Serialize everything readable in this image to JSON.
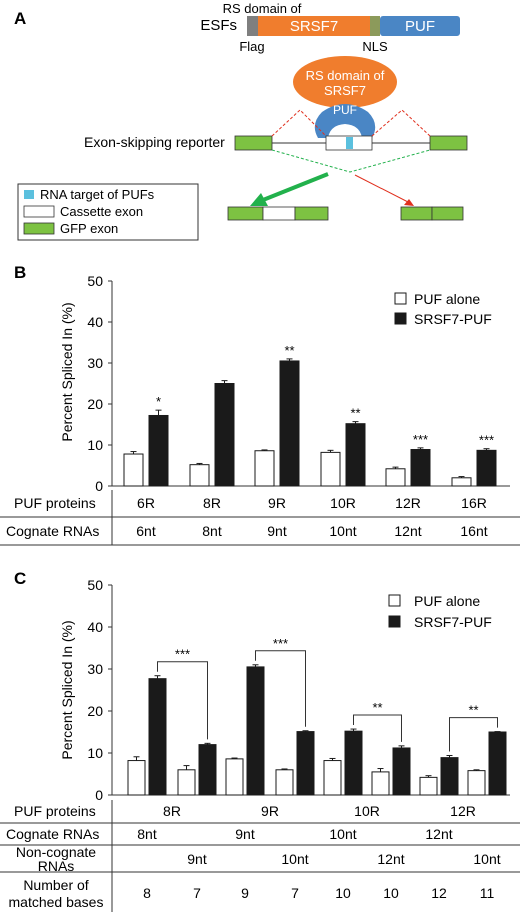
{
  "panelA": {
    "label": "A",
    "esfs_label": "ESFs",
    "rs_domain_label": "RS domain of",
    "srsf7_label": "SRSF7",
    "puf_label": "PUF",
    "flag_label": "Flag",
    "nls_label": "NLS",
    "ellipse_line1": "RS domain of",
    "ellipse_line2": "SRSF7",
    "bound_puf_label": "PUF",
    "reporter_label": "Exon-skipping reporter",
    "legend": [
      {
        "label": "RNA target of PUFs",
        "color": "#5bc0de"
      },
      {
        "label": "Cassette exon",
        "color": "#ffffff"
      },
      {
        "label": "GFP exon",
        "color": "#7dc242"
      }
    ],
    "colors": {
      "srsf7": "#f07d2d",
      "puf": "#4a86c5",
      "flag": "#7f7f7f",
      "nls": "#8c9a5b",
      "gfp": "#7dc242",
      "target": "#5bc0de",
      "arrow": "#22b14c",
      "red": "#e0301e"
    }
  },
  "panelB": {
    "label": "B",
    "ylabel": "Percent Spliced In (%)",
    "legend": [
      "PUF alone",
      "SRSF7-PUF"
    ],
    "row1_label": "PUF proteins",
    "row2_label": "Cognate RNAs",
    "proteins": [
      "6R",
      "8R",
      "9R",
      "10R",
      "12R",
      "16R"
    ],
    "rnas": [
      "6nt",
      "8nt",
      "9nt",
      "10nt",
      "12nt",
      "16nt"
    ],
    "yticks": [
      "0",
      "10",
      "20",
      "30",
      "40",
      "50"
    ]
  },
  "panelC": {
    "label": "C",
    "ylabel": "Percent Spliced In (%)",
    "legend": [
      "PUF alone",
      "SRSF7-PUF"
    ],
    "row1_label": "PUF proteins",
    "row2_label": "Cognate RNAs",
    "row3_label_1": "Non-cognate",
    "row3_label_2": "RNAs",
    "row4_label_1": "Number of",
    "row4_label_2": "matched bases",
    "proteins": [
      "8R",
      "9R",
      "10R",
      "12R"
    ],
    "cognate": [
      "8nt",
      "9nt",
      "10nt",
      "12nt"
    ],
    "noncognate": [
      "9nt",
      "10nt",
      "12nt",
      "10nt"
    ],
    "matched": [
      "8",
      "7",
      "9",
      "7",
      "10",
      "10",
      "12",
      "11"
    ],
    "brackets": [
      "***",
      "***",
      "**",
      "**"
    ],
    "yticks": [
      "0",
      "10",
      "20",
      "30",
      "40",
      "50"
    ]
  },
  "chart_data": [
    {
      "type": "bar",
      "ylabel": "Percent Spliced In (%)",
      "ylim": [
        0,
        50
      ],
      "categories": [
        "6R",
        "8R",
        "9R",
        "10R",
        "12R",
        "16R"
      ],
      "series": [
        {
          "name": "PUF alone",
          "values": [
            7.8,
            5.2,
            8.6,
            8.2,
            4.2,
            2.0
          ],
          "errors": [
            0.6,
            0.3,
            0.2,
            0.5,
            0.4,
            0.3
          ]
        },
        {
          "name": "SRSF7-PUF",
          "values": [
            17.2,
            25.0,
            30.5,
            15.2,
            8.9,
            8.7
          ],
          "errors": [
            1.3,
            0.7,
            0.5,
            0.5,
            0.4,
            0.4
          ]
        }
      ],
      "significance": [
        "*",
        "",
        "**",
        "**",
        "***",
        "***"
      ],
      "legend": "top-right"
    },
    {
      "type": "bar",
      "ylabel": "Percent Spliced In (%)",
      "ylim": [
        0,
        50
      ],
      "categories": [
        "8R",
        "8R",
        "9R",
        "9R",
        "10R",
        "10R",
        "12R",
        "12R"
      ],
      "series": [
        {
          "name": "PUF alone",
          "values": [
            8.2,
            6.0,
            8.6,
            6.0,
            8.2,
            5.5,
            4.2,
            5.8
          ],
          "errors": [
            0.9,
            1.0,
            0.2,
            0.2,
            0.5,
            0.8,
            0.4,
            0.2
          ]
        },
        {
          "name": "SRSF7-PUF",
          "values": [
            27.7,
            12.0,
            30.5,
            15.1,
            15.2,
            11.2,
            8.9,
            15.0
          ],
          "errors": [
            0.7,
            0.3,
            0.5,
            0.2,
            0.5,
            0.5,
            0.5,
            0.1
          ]
        }
      ],
      "significance": [
        "***",
        "***",
        "**",
        "**"
      ],
      "legend": "top-right"
    }
  ]
}
